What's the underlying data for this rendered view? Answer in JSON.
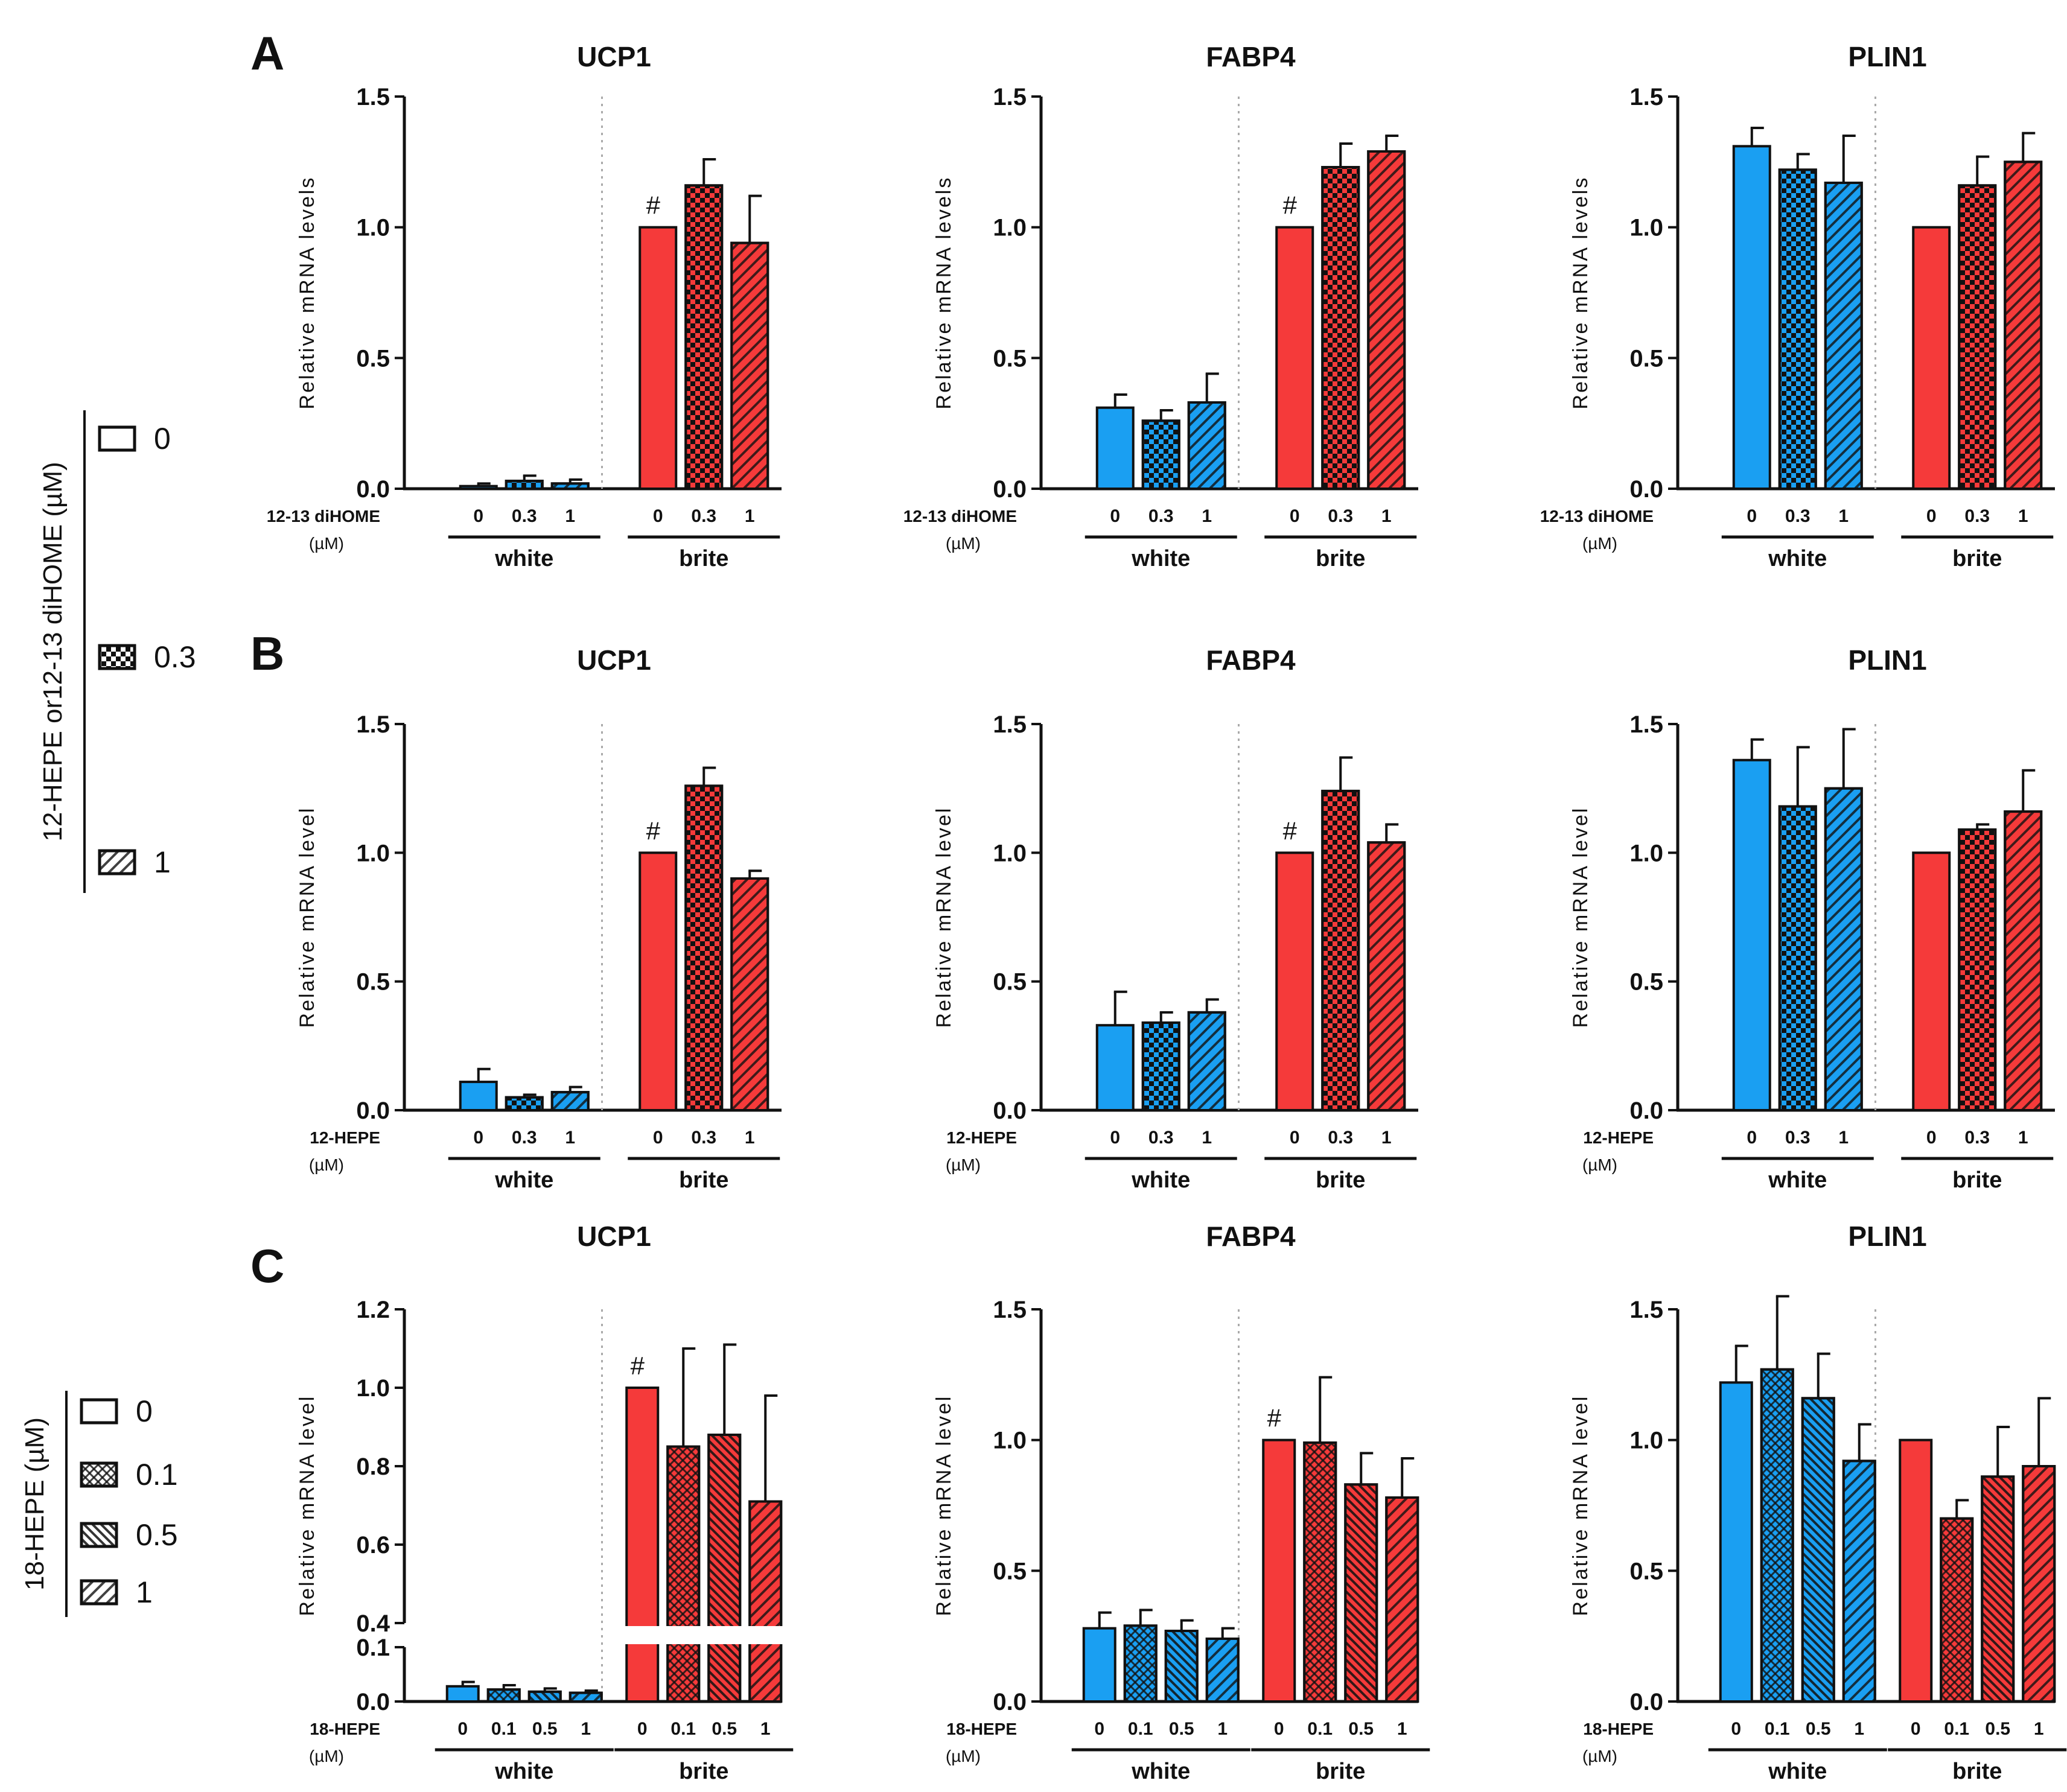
{
  "colors": {
    "white": "#1a9ff2",
    "brite": "#f53a3a",
    "axis": "#111111",
    "divider": "#aaaaaa"
  },
  "panel_labels": [
    "A",
    "B",
    "C"
  ],
  "legend_top": {
    "title": "12-HEPE  or12-13 diHOME  (µM)",
    "items": [
      {
        "label": "0",
        "pattern": "none"
      },
      {
        "label": "0.3",
        "pattern": "checker"
      },
      {
        "label": "1",
        "pattern": "diag"
      }
    ]
  },
  "legend_bottom": {
    "title": "18-HEPE  (µM)",
    "items": [
      {
        "label": "0",
        "pattern": "none"
      },
      {
        "label": "0.1",
        "pattern": "cross"
      },
      {
        "label": "0.5",
        "pattern": "diagdense"
      },
      {
        "label": "1",
        "pattern": "diag"
      }
    ]
  },
  "chart_data": [
    {
      "type": "bar",
      "panel": "A",
      "title": "UCP1",
      "ylabel": "Relative mRNA levels",
      "ylim": [
        0,
        1.5
      ],
      "yticks": [
        "0.0",
        "0.5",
        "1.0",
        "1.5"
      ],
      "treatment": "12-13 diHOME",
      "unit": "(µM)",
      "doses": [
        "0",
        "0.3",
        "1"
      ],
      "groups": [
        "white",
        "brite"
      ],
      "patterns": [
        "none",
        "checker",
        "diag"
      ],
      "series": [
        {
          "name": "white",
          "values": [
            0.01,
            0.03,
            0.02
          ],
          "errors": [
            0.01,
            0.02,
            0.015
          ]
        },
        {
          "name": "brite",
          "values": [
            1.0,
            1.16,
            0.94
          ],
          "errors": [
            0,
            0.1,
            0.18
          ]
        }
      ],
      "annotation": "#"
    },
    {
      "type": "bar",
      "panel": "A",
      "title": "FABP4",
      "ylabel": "Relative mRNA levels",
      "ylim": [
        0,
        1.5
      ],
      "yticks": [
        "0.0",
        "0.5",
        "1.0",
        "1.5"
      ],
      "treatment": "12-13 diHOME",
      "unit": "(µM)",
      "doses": [
        "0",
        "0.3",
        "1"
      ],
      "groups": [
        "white",
        "brite"
      ],
      "patterns": [
        "none",
        "checker",
        "diag"
      ],
      "series": [
        {
          "name": "white",
          "values": [
            0.31,
            0.26,
            0.33
          ],
          "errors": [
            0.05,
            0.04,
            0.11
          ]
        },
        {
          "name": "brite",
          "values": [
            1.0,
            1.23,
            1.29
          ],
          "errors": [
            0,
            0.09,
            0.06
          ]
        }
      ],
      "annotation": "#"
    },
    {
      "type": "bar",
      "panel": "A",
      "title": "PLIN1",
      "ylabel": "Relative mRNA levels",
      "ylim": [
        0,
        1.5
      ],
      "yticks": [
        "0.0",
        "0.5",
        "1.0",
        "1.5"
      ],
      "treatment": "12-13 diHOME",
      "unit": "(µM)",
      "doses": [
        "0",
        "0.3",
        "1"
      ],
      "groups": [
        "white",
        "brite"
      ],
      "patterns": [
        "none",
        "checker",
        "diag"
      ],
      "series": [
        {
          "name": "white",
          "values": [
            1.31,
            1.22,
            1.17
          ],
          "errors": [
            0.07,
            0.06,
            0.18
          ]
        },
        {
          "name": "brite",
          "values": [
            1.0,
            1.16,
            1.25
          ],
          "errors": [
            0,
            0.11,
            0.11
          ]
        }
      ],
      "annotation": ""
    },
    {
      "type": "bar",
      "panel": "B",
      "title": "UCP1",
      "ylabel": "Relative mRNA level",
      "ylim": [
        0,
        1.5
      ],
      "yticks": [
        "0.0",
        "0.5",
        "1.0",
        "1.5"
      ],
      "treatment": "12-HEPE",
      "unit": "(µM)",
      "doses": [
        "0",
        "0.3",
        "1"
      ],
      "groups": [
        "white",
        "brite"
      ],
      "patterns": [
        "none",
        "checker",
        "diag"
      ],
      "series": [
        {
          "name": "white",
          "values": [
            0.11,
            0.05,
            0.07
          ],
          "errors": [
            0.05,
            0.01,
            0.02
          ]
        },
        {
          "name": "brite",
          "values": [
            1.0,
            1.26,
            0.9
          ],
          "errors": [
            0,
            0.07,
            0.03
          ]
        }
      ],
      "annotation": "#"
    },
    {
      "type": "bar",
      "panel": "B",
      "title": "FABP4",
      "ylabel": "Relative mRNA level",
      "ylim": [
        0,
        1.5
      ],
      "yticks": [
        "0.0",
        "0.5",
        "1.0",
        "1.5"
      ],
      "treatment": "12-HEPE",
      "unit": "(µM)",
      "doses": [
        "0",
        "0.3",
        "1"
      ],
      "groups": [
        "white",
        "brite"
      ],
      "patterns": [
        "none",
        "checker",
        "diag"
      ],
      "series": [
        {
          "name": "white",
          "values": [
            0.33,
            0.34,
            0.38
          ],
          "errors": [
            0.13,
            0.04,
            0.05
          ]
        },
        {
          "name": "brite",
          "values": [
            1.0,
            1.24,
            1.04
          ],
          "errors": [
            0,
            0.13,
            0.07
          ]
        }
      ],
      "annotation": "#"
    },
    {
      "type": "bar",
      "panel": "B",
      "title": "PLIN1",
      "ylabel": "Relative mRNA level",
      "ylim": [
        0,
        1.5
      ],
      "yticks": [
        "0.0",
        "0.5",
        "1.0",
        "1.5"
      ],
      "treatment": "12-HEPE",
      "unit": "(µM)",
      "doses": [
        "0",
        "0.3",
        "1"
      ],
      "groups": [
        "white",
        "brite"
      ],
      "patterns": [
        "none",
        "checker",
        "diag"
      ],
      "series": [
        {
          "name": "white",
          "values": [
            1.36,
            1.18,
            1.25
          ],
          "errors": [
            0.08,
            0.23,
            0.23
          ]
        },
        {
          "name": "brite",
          "values": [
            1.0,
            1.09,
            1.16
          ],
          "errors": [
            0,
            0.02,
            0.16
          ]
        }
      ],
      "annotation": ""
    },
    {
      "type": "bar",
      "panel": "C",
      "title": "UCP1",
      "ylabel": "Relative mRNA level",
      "ylim": [
        0,
        1.2
      ],
      "axis_break": [
        0.1,
        0.4
      ],
      "yticks": [
        "0.0",
        "0.1",
        "0.4",
        "0.6",
        "0.8",
        "1.0",
        "1.2"
      ],
      "treatment": "18-HEPE",
      "unit": "(µM)",
      "doses": [
        "0",
        "0.1",
        "0.5",
        "1"
      ],
      "groups": [
        "white",
        "brite"
      ],
      "patterns": [
        "none",
        "cross",
        "diagdense",
        "diag"
      ],
      "series": [
        {
          "name": "white",
          "values": [
            0.028,
            0.022,
            0.018,
            0.016
          ],
          "errors": [
            0.008,
            0.008,
            0.006,
            0.004
          ]
        },
        {
          "name": "brite",
          "values": [
            1.0,
            0.85,
            0.88,
            0.71
          ],
          "errors": [
            0,
            0.25,
            0.23,
            0.27
          ]
        }
      ],
      "annotation": "#"
    },
    {
      "type": "bar",
      "panel": "C",
      "title": "FABP4",
      "ylabel": "Relative mRNA level",
      "ylim": [
        0,
        1.5
      ],
      "yticks": [
        "0.0",
        "0.5",
        "1.0",
        "1.5"
      ],
      "treatment": "18-HEPE",
      "unit": "(µM)",
      "doses": [
        "0",
        "0.1",
        "0.5",
        "1"
      ],
      "groups": [
        "white",
        "brite"
      ],
      "patterns": [
        "none",
        "cross",
        "diagdense",
        "diag"
      ],
      "series": [
        {
          "name": "white",
          "values": [
            0.28,
            0.29,
            0.27,
            0.24
          ],
          "errors": [
            0.06,
            0.06,
            0.04,
            0.04
          ]
        },
        {
          "name": "brite",
          "values": [
            1.0,
            0.99,
            0.83,
            0.78
          ],
          "errors": [
            0,
            0.25,
            0.12,
            0.15
          ]
        }
      ],
      "annotation": "#"
    },
    {
      "type": "bar",
      "panel": "C",
      "title": "PLIN1",
      "ylabel": "Relative mRNA level",
      "ylim": [
        0,
        1.5
      ],
      "yticks": [
        "0.0",
        "0.5",
        "1.0",
        "1.5"
      ],
      "treatment": "18-HEPE",
      "unit": "(µM)",
      "doses": [
        "0",
        "0.1",
        "0.5",
        "1"
      ],
      "groups": [
        "white",
        "brite"
      ],
      "patterns": [
        "none",
        "cross",
        "diagdense",
        "diag"
      ],
      "series": [
        {
          "name": "white",
          "values": [
            1.22,
            1.27,
            1.16,
            0.92
          ],
          "errors": [
            0.14,
            0.28,
            0.17,
            0.14
          ]
        },
        {
          "name": "brite",
          "values": [
            1.0,
            0.7,
            0.86,
            0.9
          ],
          "errors": [
            0,
            0.07,
            0.19,
            0.26
          ]
        }
      ],
      "annotation": ""
    }
  ]
}
